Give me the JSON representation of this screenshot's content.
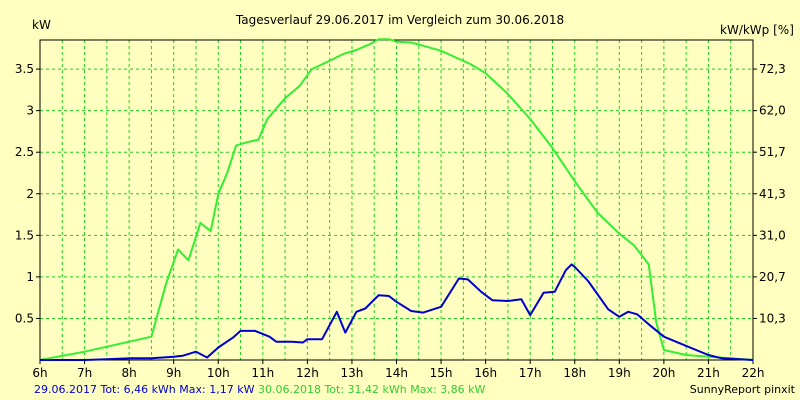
{
  "title": "Tagesverlauf 29.06.2017 im Vergleich zum 30.06.2018",
  "footer": {
    "left_blue": "29.06.2017 Tot: 6,46 kWh Max: 1,17 kW",
    "left_green": "30.06.2018 Tot: 31,42 kWh Max: 3,86 kW",
    "right": "SunnyReport pinxit"
  },
  "colors": {
    "background": "#ffffc0",
    "grid": "#22cc22",
    "series_2017": "#0000cc",
    "series_2018": "#33ee33",
    "axis": "#000000"
  },
  "chart_data": {
    "type": "line",
    "ylabel": "kW",
    "y2label": "kW/kWp [%]",
    "xlim": [
      6,
      22
    ],
    "ylim": [
      0,
      3.85
    ],
    "grid": true,
    "x_ticks": [
      {
        "v": 6,
        "label": "6h"
      },
      {
        "v": 7,
        "label": "7h"
      },
      {
        "v": 8,
        "label": "8h"
      },
      {
        "v": 9,
        "label": "9h"
      },
      {
        "v": 10,
        "label": "10h"
      },
      {
        "v": 11,
        "label": "11h"
      },
      {
        "v": 12,
        "label": "12h"
      },
      {
        "v": 13,
        "label": "13h"
      },
      {
        "v": 14,
        "label": "14h"
      },
      {
        "v": 15,
        "label": "15h"
      },
      {
        "v": 16,
        "label": "16h"
      },
      {
        "v": 17,
        "label": "17h"
      },
      {
        "v": 18,
        "label": "18h"
      },
      {
        "v": 19,
        "label": "19h"
      },
      {
        "v": 20,
        "label": "20h"
      },
      {
        "v": 21,
        "label": "21h"
      },
      {
        "v": 22,
        "label": "22h"
      }
    ],
    "y_ticks": [
      {
        "v": 0.5,
        "label": "0.5"
      },
      {
        "v": 1,
        "label": "1"
      },
      {
        "v": 1.5,
        "label": "1.5"
      },
      {
        "v": 2,
        "label": "2"
      },
      {
        "v": 2.5,
        "label": "2.5"
      },
      {
        "v": 3,
        "label": "3"
      },
      {
        "v": 3.5,
        "label": "3.5"
      }
    ],
    "y2_ticks": [
      {
        "v": 0.5,
        "label": "10,3"
      },
      {
        "v": 1,
        "label": "20,7"
      },
      {
        "v": 1.5,
        "label": "31,0"
      },
      {
        "v": 2,
        "label": "41,3"
      },
      {
        "v": 2.5,
        "label": "51,7"
      },
      {
        "v": 3,
        "label": "62,0"
      },
      {
        "v": 3.5,
        "label": "72,3"
      }
    ],
    "series": [
      {
        "colorKey": "series_2018",
        "points": [
          [
            6.0,
            0.0
          ],
          [
            6.5,
            0.05
          ],
          [
            7.0,
            0.1
          ],
          [
            7.5,
            0.16
          ],
          [
            8.0,
            0.22
          ],
          [
            8.5,
            0.28
          ],
          [
            8.83,
            0.92
          ],
          [
            9.1,
            1.33
          ],
          [
            9.33,
            1.2
          ],
          [
            9.6,
            1.65
          ],
          [
            9.83,
            1.55
          ],
          [
            10.0,
            2.0
          ],
          [
            10.2,
            2.25
          ],
          [
            10.4,
            2.58
          ],
          [
            10.65,
            2.62
          ],
          [
            10.9,
            2.65
          ],
          [
            11.1,
            2.9
          ],
          [
            11.5,
            3.15
          ],
          [
            11.83,
            3.3
          ],
          [
            12.1,
            3.5
          ],
          [
            12.5,
            3.6
          ],
          [
            12.8,
            3.68
          ],
          [
            13.1,
            3.73
          ],
          [
            13.4,
            3.8
          ],
          [
            13.6,
            3.86
          ],
          [
            13.83,
            3.86
          ],
          [
            14.0,
            3.83
          ],
          [
            14.33,
            3.82
          ],
          [
            14.6,
            3.78
          ],
          [
            15.0,
            3.72
          ],
          [
            15.33,
            3.64
          ],
          [
            15.66,
            3.56
          ],
          [
            16.0,
            3.45
          ],
          [
            16.5,
            3.2
          ],
          [
            17.0,
            2.9
          ],
          [
            17.5,
            2.55
          ],
          [
            18.0,
            2.15
          ],
          [
            18.5,
            1.78
          ],
          [
            19.0,
            1.52
          ],
          [
            19.33,
            1.38
          ],
          [
            19.66,
            1.15
          ],
          [
            19.83,
            0.45
          ],
          [
            20.0,
            0.12
          ],
          [
            20.5,
            0.06
          ],
          [
            21.0,
            0.04
          ],
          [
            21.5,
            0.02
          ],
          [
            22.0,
            0.0
          ]
        ]
      },
      {
        "colorKey": "series_2017",
        "points": [
          [
            6.0,
            0.0
          ],
          [
            7.0,
            0.0
          ],
          [
            7.5,
            0.01
          ],
          [
            8.0,
            0.02
          ],
          [
            8.5,
            0.02
          ],
          [
            9.0,
            0.04
          ],
          [
            9.2,
            0.05
          ],
          [
            9.5,
            0.1
          ],
          [
            9.75,
            0.03
          ],
          [
            10.0,
            0.15
          ],
          [
            10.33,
            0.27
          ],
          [
            10.5,
            0.35
          ],
          [
            10.83,
            0.35
          ],
          [
            11.15,
            0.28
          ],
          [
            11.3,
            0.22
          ],
          [
            11.66,
            0.22
          ],
          [
            11.9,
            0.21
          ],
          [
            12.0,
            0.25
          ],
          [
            12.33,
            0.25
          ],
          [
            12.66,
            0.58
          ],
          [
            12.85,
            0.33
          ],
          [
            13.1,
            0.58
          ],
          [
            13.3,
            0.62
          ],
          [
            13.6,
            0.78
          ],
          [
            13.83,
            0.77
          ],
          [
            14.0,
            0.7
          ],
          [
            14.33,
            0.59
          ],
          [
            14.6,
            0.57
          ],
          [
            15.0,
            0.64
          ],
          [
            15.4,
            0.98
          ],
          [
            15.6,
            0.97
          ],
          [
            15.9,
            0.82
          ],
          [
            16.15,
            0.72
          ],
          [
            16.5,
            0.71
          ],
          [
            16.8,
            0.73
          ],
          [
            17.0,
            0.54
          ],
          [
            17.3,
            0.81
          ],
          [
            17.55,
            0.82
          ],
          [
            17.8,
            1.08
          ],
          [
            17.93,
            1.15
          ],
          [
            18.0,
            1.12
          ],
          [
            18.3,
            0.95
          ],
          [
            18.5,
            0.8
          ],
          [
            18.75,
            0.61
          ],
          [
            19.0,
            0.52
          ],
          [
            19.2,
            0.58
          ],
          [
            19.4,
            0.55
          ],
          [
            19.66,
            0.43
          ],
          [
            20.0,
            0.28
          ],
          [
            20.5,
            0.17
          ],
          [
            21.0,
            0.06
          ],
          [
            21.3,
            0.02
          ],
          [
            22.0,
            0.0
          ]
        ]
      }
    ]
  }
}
